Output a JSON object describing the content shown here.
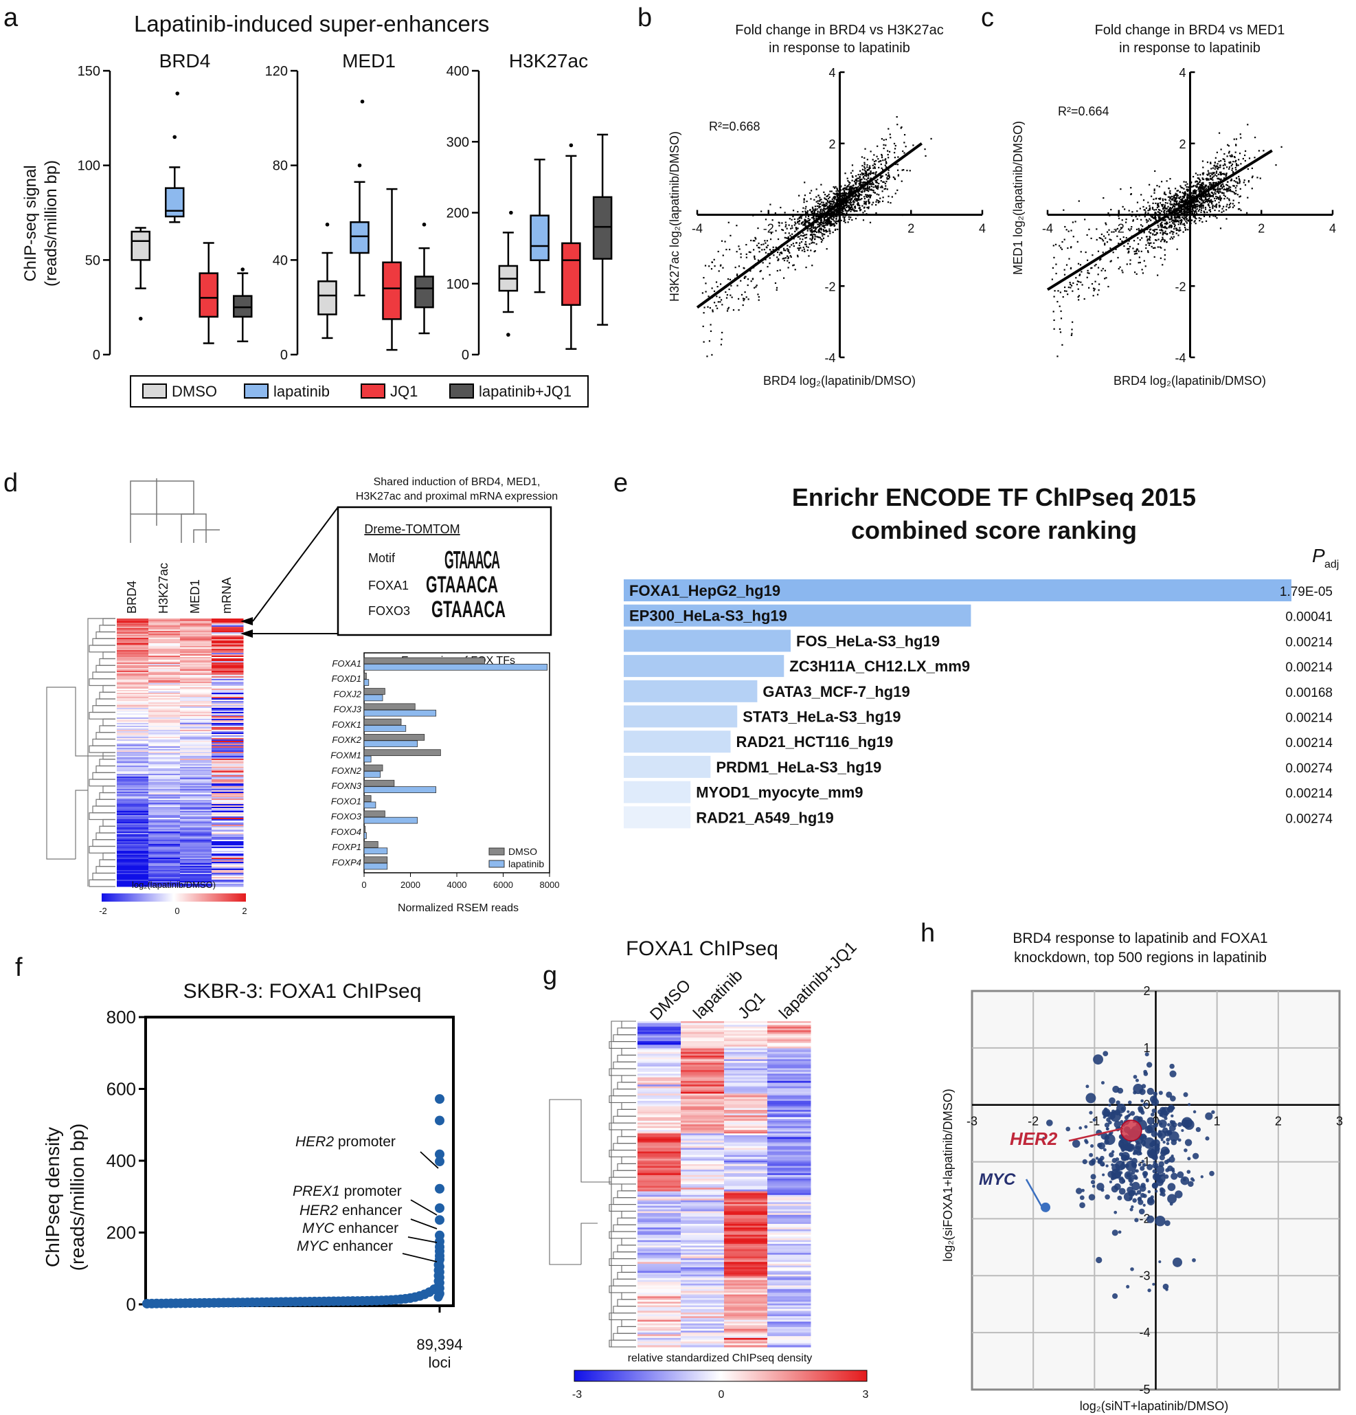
{
  "panels": {
    "a": {
      "letter": "a",
      "title": "Lapatinib-induced super-enhancers",
      "ylabel_line1": "ChIP-seq signal",
      "ylabel_line2": "(reads/million bp)",
      "legend": [
        "DMSO",
        "lapatinib",
        "JQ1",
        "lapatinib+JQ1"
      ],
      "colors": {
        "DMSO": "#d9d9d9",
        "lapatinib": "#8db9ee",
        "JQ1": "#ee3a3f",
        "lapatinib+JQ1": "#555555"
      }
    },
    "b": {
      "letter": "b",
      "title_line1": "Fold change in BRD4 vs H3K27ac",
      "title_line2": "in response to lapatinib",
      "r2": "R²=0.668",
      "xlabel": "BRD4 log₂(lapatinib/DMSO)",
      "ylabel": "H3K27ac log₂(lapatinib/DMSO)"
    },
    "c": {
      "letter": "c",
      "title_line1": "Fold change in BRD4 vs MED1",
      "title_line2": "in response to lapatinib",
      "r2": "R²=0.664",
      "xlabel": "BRD4 log₂(lapatinib/DMSO)",
      "ylabel": "MED1 log₂(lapatinib/DMSO)"
    },
    "d": {
      "letter": "d",
      "columns": [
        "BRD4",
        "H3K27ac",
        "MED1",
        "mRNA"
      ],
      "shared_line1": "Shared induction of BRD4, MED1,",
      "shared_line2": "H3K27ac and proximal mRNA expression",
      "motif_box_title": "Dreme-TOMTOM",
      "motif_rows": [
        "Motif",
        "FOXA1",
        "FOXO3"
      ],
      "motif_logo_text": "GTAAACA",
      "colorbar_label": "log₂(lapatinib/DMSO)",
      "colorbar_ticks": [
        "-2",
        "0",
        "2"
      ],
      "fox_title": "Expression of FOX TFs",
      "fox_xlabel": "Normalized RSEM reads",
      "fox_legend": [
        "DMSO",
        "lapatinib"
      ]
    },
    "e": {
      "letter": "e",
      "title_line1": "Enrichr ENCODE TF ChIPseq 2015",
      "title_line2": "combined score ranking",
      "padj_P": "P",
      "padj_sub": "adj"
    },
    "f": {
      "letter": "f",
      "title": "SKBR-3: FOXA1 ChIPseq",
      "ylabel_line1": "ChIPseq density",
      "ylabel_line2": "(reads/million bp)",
      "xlabel_line1": "89,394",
      "xlabel_line2": "loci",
      "annotations": [
        {
          "gene": "HER2",
          "rest": " promoter"
        },
        {
          "gene": "PREX1",
          "rest": " promoter"
        },
        {
          "gene": "HER2",
          "rest": " enhancer"
        },
        {
          "gene": "MYC",
          "rest": " enhancer"
        },
        {
          "gene": "MYC",
          "rest": " enhancer"
        }
      ]
    },
    "g": {
      "letter": "g",
      "title": "FOXA1 ChIPseq",
      "columns": [
        "DMSO",
        "lapatinib",
        "JQ1",
        "lapatinib+JQ1"
      ],
      "colorbar_label": "relative standardized ChIPseq density",
      "colorbar_ticks": [
        "-3",
        "0",
        "3"
      ]
    },
    "h": {
      "letter": "h",
      "title_line1": "BRD4 response to lapatinib and FOXA1",
      "title_line2": "knockdown, top 500 regions in lapatinib",
      "xlabel": "log₂(siNT+lapatinib/DMSO)",
      "ylabel": "log₂(siFOXA1+lapatinib/DMSO)",
      "her2_label": "HER2",
      "myc_label": "MYC"
    }
  },
  "chart_data": [
    {
      "id": "a",
      "type": "box",
      "groups": [
        "BRD4",
        "MED1",
        "H3K27ac"
      ],
      "conditions": [
        "DMSO",
        "lapatinib",
        "JQ1",
        "lapatinib+JQ1"
      ],
      "ylims": [
        [
          0,
          150
        ],
        [
          0,
          120
        ],
        [
          0,
          400
        ]
      ],
      "yticks": [
        [
          "0",
          "50",
          "100",
          "150"
        ],
        [
          "0",
          "40",
          "80",
          "120"
        ],
        [
          "0",
          "100",
          "200",
          "300",
          "400"
        ]
      ],
      "boxes": [
        [
          {
            "lo": 35,
            "q1": 50,
            "med": 60,
            "q3": 65,
            "hi": 67,
            "out": [
              19
            ]
          },
          {
            "lo": 70,
            "q1": 73,
            "med": 76,
            "q3": 88,
            "hi": 99,
            "out": [
              115,
              138
            ]
          },
          {
            "lo": 6,
            "q1": 20,
            "med": 30,
            "q3": 43,
            "hi": 59,
            "out": []
          },
          {
            "lo": 7,
            "q1": 20,
            "med": 25,
            "q3": 31,
            "hi": 43,
            "out": [
              45
            ]
          }
        ],
        [
          {
            "lo": 7,
            "q1": 17,
            "med": 25,
            "q3": 31,
            "hi": 43,
            "out": [
              55
            ]
          },
          {
            "lo": 25,
            "q1": 43,
            "med": 50,
            "q3": 56,
            "hi": 73,
            "out": [
              80,
              107
            ]
          },
          {
            "lo": 2,
            "q1": 15,
            "med": 28,
            "q3": 39,
            "hi": 70,
            "out": []
          },
          {
            "lo": 9,
            "q1": 20,
            "med": 28,
            "q3": 33,
            "hi": 45,
            "out": [
              55
            ]
          }
        ],
        [
          {
            "lo": 60,
            "q1": 90,
            "med": 107,
            "q3": 125,
            "hi": 172,
            "out": [
              28,
              200
            ]
          },
          {
            "lo": 88,
            "q1": 133,
            "med": 153,
            "q3": 196,
            "hi": 275,
            "out": []
          },
          {
            "lo": 8,
            "q1": 70,
            "med": 133,
            "q3": 157,
            "hi": 280,
            "out": [
              295
            ]
          },
          {
            "lo": 42,
            "q1": 135,
            "med": 180,
            "q3": 222,
            "hi": 310,
            "out": []
          }
        ]
      ]
    },
    {
      "id": "b",
      "type": "scatter",
      "title": "Fold change in BRD4 vs H3K27ac in response to lapatinib",
      "xlim": [
        -4,
        4
      ],
      "ylim": [
        -4,
        4
      ],
      "xticks": [
        "-4",
        "-2",
        "2",
        "4"
      ],
      "yticks": [
        "4",
        "2",
        "-2",
        "-4"
      ],
      "r2": 0.668,
      "fit_line": {
        "x": [
          -4,
          2.3
        ],
        "y": [
          -2.6,
          2.0
        ]
      }
    },
    {
      "id": "c",
      "type": "scatter",
      "title": "Fold change in BRD4 vs MED1 in response to lapatinib",
      "xlim": [
        -4,
        4
      ],
      "ylim": [
        -4,
        4
      ],
      "xticks": [
        "-4",
        "-2",
        "2",
        "4"
      ],
      "yticks": [
        "4",
        "2",
        "-2",
        "-4"
      ],
      "r2": 0.664,
      "fit_line": {
        "x": [
          -4,
          2.3
        ],
        "y": [
          -2.1,
          1.8
        ]
      }
    },
    {
      "id": "d_fox",
      "type": "bar",
      "orientation": "horizontal",
      "categories": [
        "FOXA1",
        "FOXD1",
        "FOXJ2",
        "FOXJ3",
        "FOXK1",
        "FOXK2",
        "FOXM1",
        "FOXN2",
        "FOXN3",
        "FOXO1",
        "FOXO3",
        "FOXO4",
        "FOXP1",
        "FOXP4"
      ],
      "series": [
        {
          "name": "DMSO",
          "values": [
            5200,
            100,
            900,
            2200,
            1600,
            2600,
            3300,
            800,
            1300,
            300,
            900,
            50,
            600,
            1000
          ]
        },
        {
          "name": "lapatinib",
          "values": [
            7900,
            200,
            800,
            3100,
            1800,
            2300,
            300,
            700,
            3100,
            500,
            2300,
            100,
            1000,
            1000
          ]
        }
      ],
      "xlim": [
        0,
        8000
      ],
      "xticks": [
        "0",
        "2000",
        "4000",
        "6000",
        "8000"
      ]
    },
    {
      "id": "e",
      "type": "bar",
      "orientation": "horizontal",
      "title": "Enrichr ENCODE TF ChIPseq 2015 combined score ranking",
      "categories": [
        "FOXA1_HepG2_hg19",
        "EP300_HeLa-S3_hg19",
        "FOS_HeLa-S3_hg19",
        "ZC3H11A_CH12.LX_mm9",
        "GATA3_MCF-7_hg19",
        "STAT3_HeLa-S3_hg19",
        "RAD21_HCT116_hg19",
        "PRDM1_HeLa-S3_hg19",
        "MYOD1_myocyte_mm9",
        "RAD21_A549_hg19"
      ],
      "values": [
        100,
        52,
        25,
        24,
        20,
        17,
        16,
        13,
        10,
        10
      ],
      "padj": [
        "1.79E-05",
        "0.00041",
        "0.00214",
        "0.00214",
        "0.00168",
        "0.00214",
        "0.00214",
        "0.00274",
        "0.00214",
        "0.00274"
      ]
    },
    {
      "id": "f",
      "type": "scatter",
      "title": "SKBR-3: FOXA1 ChIPseq",
      "ylim": [
        0,
        800
      ],
      "yticks": [
        "0",
        "200",
        "400",
        "600",
        "800"
      ],
      "n_loci": 89394,
      "top_values": [
        572,
        512,
        418,
        398,
        322,
        268,
        235,
        192,
        175,
        160,
        148,
        135,
        125
      ]
    },
    {
      "id": "g",
      "type": "heatmap",
      "title": "FOXA1 ChIPseq",
      "columns": [
        "DMSO",
        "lapatinib",
        "JQ1",
        "lapatinib+JQ1"
      ],
      "range": [
        -3,
        3
      ]
    },
    {
      "id": "h",
      "type": "scatter",
      "title": "BRD4 response to lapatinib and FOXA1 knockdown, top 500 regions in lapatinib",
      "xlim": [
        -3,
        3
      ],
      "ylim": [
        -5,
        2
      ],
      "xticks": [
        "-3",
        "-2",
        "-1",
        "0",
        "1",
        "2",
        "3"
      ],
      "yticks": [
        "2",
        "1",
        "0",
        "-1",
        "-2",
        "-3",
        "-4",
        "-5"
      ],
      "highlights": [
        {
          "label": "HER2",
          "x": -0.4,
          "y": -0.45
        },
        {
          "label": "MYC",
          "x": -1.8,
          "y": -1.8
        }
      ]
    }
  ]
}
